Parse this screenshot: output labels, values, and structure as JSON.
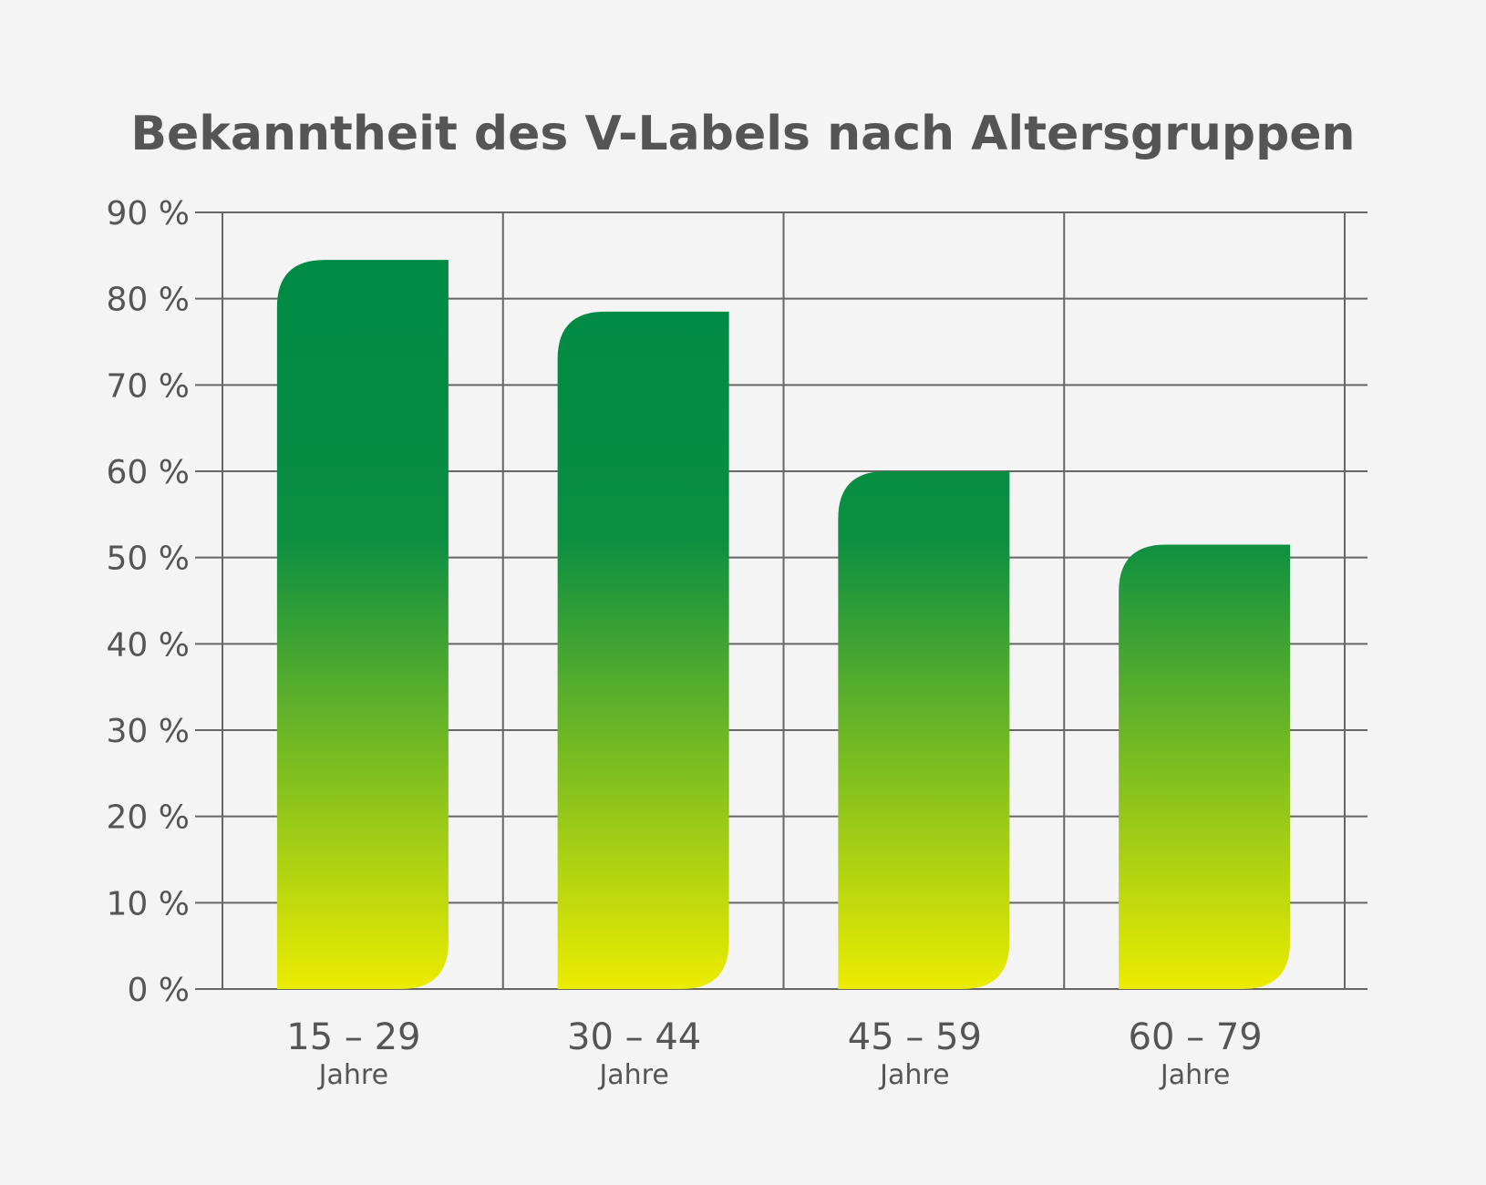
{
  "chart_data": {
    "type": "bar",
    "title": "Bekanntheit des V-Labels nach Altersgruppen",
    "categories": [
      "15 – 29",
      "30 – 44",
      "45 – 59",
      "60 – 79"
    ],
    "category_sublabel": "Jahre",
    "values": [
      84.5,
      78.5,
      60,
      51.5
    ],
    "y_ticks": [
      "0 %",
      "10 %",
      "20 %",
      "30 %",
      "40 %",
      "50 %",
      "60 %",
      "70 %",
      "80 %",
      "90 %"
    ],
    "ylim": [
      0,
      90
    ],
    "grid": true,
    "colors": {
      "bar_top": "#008a44",
      "bar_bottom": "#ecec00",
      "grid": "#666666",
      "text": "#555555",
      "background": "#f4f4f4"
    }
  }
}
